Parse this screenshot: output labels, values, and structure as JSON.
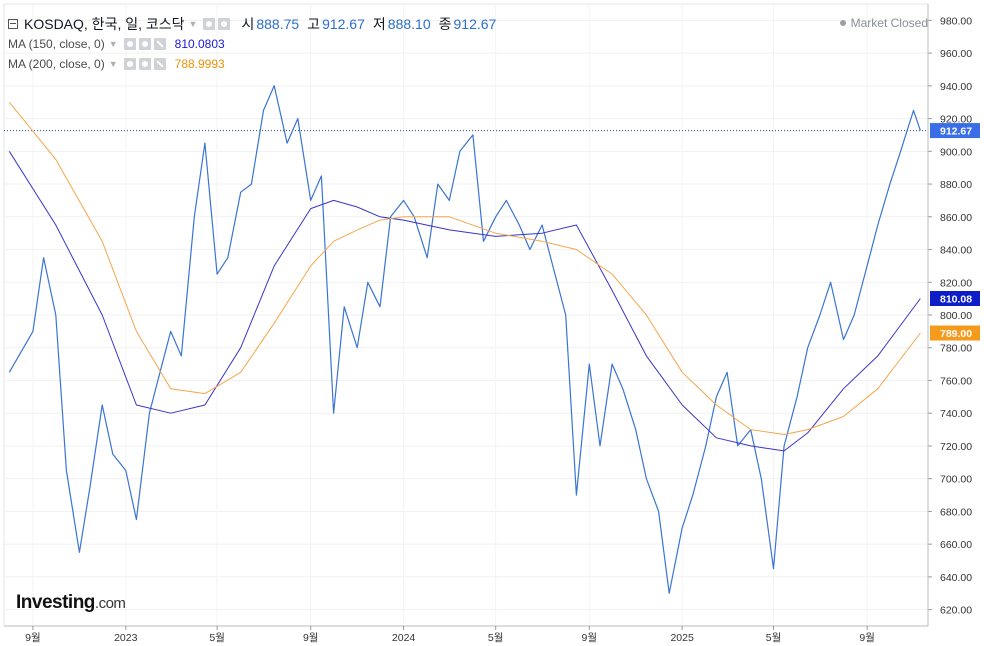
{
  "legend": {
    "symbol": "KOSDAQ, 한국, 일, 코스닥",
    "open_label": "시",
    "open": "888.75",
    "high_label": "고",
    "high": "912.67",
    "low_label": "저",
    "low": "888.10",
    "close_label": "종",
    "close": "912.67",
    "ma150": {
      "label": "MA (150, close, 0)",
      "value": "810.0803",
      "color": "#1a1ad6"
    },
    "ma200": {
      "label": "MA (200, close, 0)",
      "value": "788.9993",
      "color": "#f0900a"
    }
  },
  "status": "Market Closed",
  "logo": {
    "main": "Investing",
    "suffix": ".com"
  },
  "price_tags": {
    "last": "912.67",
    "ma150": "810.08",
    "ma200": "789.00"
  },
  "colors": {
    "price": "#3a74d4",
    "ma150": "#3a35c8",
    "ma200": "#f5a64a",
    "last_tag": "#3a6ee8",
    "ma150_tag": "#0d1ec9",
    "ma200_tag": "#f59a1c"
  },
  "chart_data": {
    "type": "line",
    "y_axis": {
      "ylim": [
        610,
        990
      ],
      "ticks": [
        980,
        960,
        940,
        920,
        900,
        880,
        860,
        840,
        820,
        800,
        780,
        760,
        740,
        720,
        700,
        680,
        660,
        640,
        620
      ],
      "tick_labels": [
        "980.00",
        "960.00",
        "940.00",
        "920.00",
        "900.00",
        "880.00",
        "860.00",
        "840.00",
        "820.00",
        "800.00",
        "780.00",
        "760.00",
        "740.00",
        "720.00",
        "700.00",
        "680.00",
        "660.00",
        "640.00",
        "620.00"
      ]
    },
    "x_axis": {
      "tick_labels": [
        "9월",
        "2023",
        "5월",
        "9월",
        "2024",
        "5월",
        "9월",
        "2025",
        "5월",
        "9월"
      ],
      "tick_dates": [
        "2022-09",
        "2023-01",
        "2023-05",
        "2023-09",
        "2024-01",
        "2024-05",
        "2024-09",
        "2025-01",
        "2025-05",
        "2025-09"
      ]
    },
    "last_value_line": 912.67,
    "series": [
      {
        "name": "KOSDAQ",
        "role": "price",
        "x": [
          "2022-08",
          "2022-09-01",
          "2022-09-15",
          "2022-10-01",
          "2022-10-15",
          "2022-11-01",
          "2022-11-15",
          "2022-12-01",
          "2022-12-15",
          "2023-01-01",
          "2023-01-15",
          "2023-02-01",
          "2023-02-15",
          "2023-03-01",
          "2023-03-15",
          "2023-04-01",
          "2023-04-15",
          "2023-05-01",
          "2023-05-15",
          "2023-06-01",
          "2023-06-15",
          "2023-07-01",
          "2023-07-15",
          "2023-08-01",
          "2023-08-15",
          "2023-09-01",
          "2023-09-15",
          "2023-10-01",
          "2023-10-15",
          "2023-11-01",
          "2023-11-15",
          "2023-12-01",
          "2023-12-15",
          "2024-01-01",
          "2024-01-15",
          "2024-02-01",
          "2024-02-15",
          "2024-03-01",
          "2024-03-15",
          "2024-04-01",
          "2024-04-15",
          "2024-05-01",
          "2024-05-15",
          "2024-06-01",
          "2024-06-15",
          "2024-07-01",
          "2024-07-15",
          "2024-08-01",
          "2024-08-15",
          "2024-09-01",
          "2024-09-15",
          "2024-10-01",
          "2024-10-15",
          "2024-11-01",
          "2024-11-15",
          "2024-12-01",
          "2024-12-15",
          "2025-01-01",
          "2025-01-15",
          "2025-02-01",
          "2025-02-15",
          "2025-03-01",
          "2025-03-15",
          "2025-04-01",
          "2025-04-15",
          "2025-05-01",
          "2025-05-15",
          "2025-06-01",
          "2025-06-15",
          "2025-07-01",
          "2025-07-15",
          "2025-08-01",
          "2025-08-15",
          "2025-09-01",
          "2025-09-15",
          "2025-10-01",
          "2025-10-15",
          "2025-11-01",
          "2025-11-10"
        ],
        "values": [
          765,
          790,
          835,
          800,
          705,
          655,
          695,
          745,
          715,
          705,
          675,
          740,
          765,
          790,
          775,
          860,
          905,
          825,
          835,
          875,
          880,
          925,
          940,
          905,
          920,
          870,
          885,
          740,
          805,
          780,
          820,
          805,
          860,
          870,
          860,
          835,
          880,
          870,
          900,
          910,
          845,
          860,
          870,
          855,
          840,
          855,
          830,
          800,
          690,
          770,
          720,
          770,
          755,
          730,
          700,
          680,
          630,
          670,
          690,
          720,
          750,
          765,
          720,
          730,
          700,
          645,
          720,
          750,
          780,
          800,
          820,
          785,
          800,
          830,
          855,
          880,
          900,
          925,
          912.67
        ]
      },
      {
        "name": "MA (150, close, 0)",
        "role": "ma150",
        "x": [
          "2022-08",
          "2022-10-01",
          "2022-12-01",
          "2023-01-15",
          "2023-03-01",
          "2023-04-15",
          "2023-06-01",
          "2023-07-15",
          "2023-09-01",
          "2023-10-01",
          "2023-11-01",
          "2023-12-01",
          "2024-01-01",
          "2024-03-01",
          "2024-05-01",
          "2024-07-01",
          "2024-08-15",
          "2024-10-01",
          "2024-11-15",
          "2025-01-01",
          "2025-02-15",
          "2025-04-01",
          "2025-05-15",
          "2025-06-15",
          "2025-08-01",
          "2025-09-15",
          "2025-11-10"
        ],
        "values": [
          900,
          855,
          800,
          745,
          740,
          745,
          780,
          830,
          865,
          870,
          866,
          860,
          858,
          852,
          848,
          850,
          855,
          815,
          775,
          745,
          725,
          720,
          717,
          728,
          755,
          775,
          810.08
        ]
      },
      {
        "name": "MA (200, close, 0)",
        "role": "ma200",
        "x": [
          "2022-08",
          "2022-10-01",
          "2022-12-01",
          "2023-01-15",
          "2023-03-01",
          "2023-04-15",
          "2023-06-01",
          "2023-07-15",
          "2023-09-01",
          "2023-10-01",
          "2023-11-01",
          "2023-12-01",
          "2024-01-01",
          "2024-03-01",
          "2024-05-01",
          "2024-07-01",
          "2024-08-15",
          "2024-10-01",
          "2024-11-15",
          "2025-01-01",
          "2025-02-15",
          "2025-04-01",
          "2025-05-15",
          "2025-06-15",
          "2025-08-01",
          "2025-09-15",
          "2025-11-10"
        ],
        "values": [
          930,
          895,
          845,
          790,
          755,
          752,
          765,
          795,
          830,
          845,
          852,
          858,
          860,
          860,
          850,
          845,
          840,
          825,
          800,
          765,
          745,
          730,
          727,
          730,
          738,
          755,
          789.0
        ]
      }
    ]
  }
}
